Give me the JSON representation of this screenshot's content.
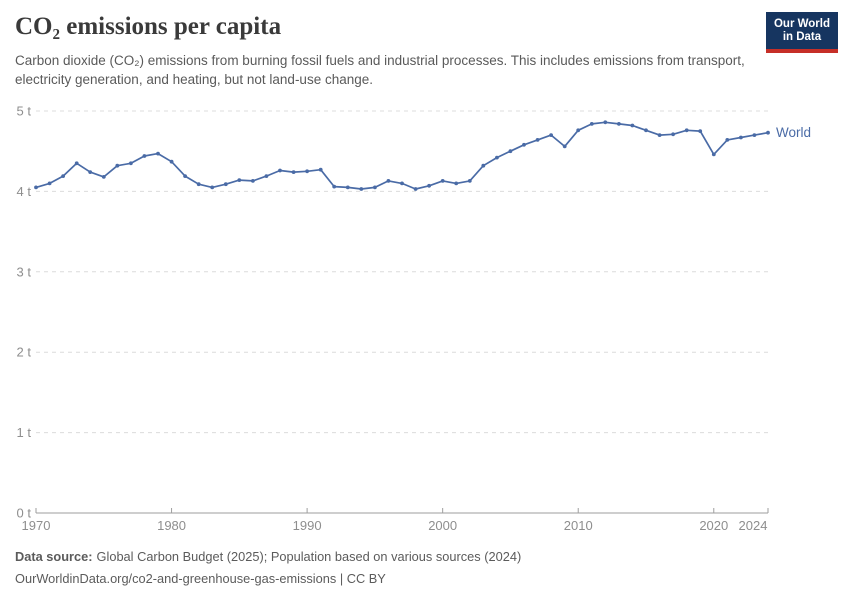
{
  "header": {
    "title": "CO₂ emissions per capita",
    "subtitle": "Carbon dioxide (CO₂) emissions from burning fossil fuels and industrial processes. This includes emissions from transport, electricity generation, and heating, but not land-use change.",
    "logo": {
      "line1": "Our World",
      "line2": "in Data",
      "bg_color": "#163560",
      "accent_color": "#c62f28"
    }
  },
  "chart_data": {
    "type": "line",
    "title": "CO₂ emissions per capita",
    "unit": "t",
    "xlim": [
      1970,
      2024
    ],
    "ylim": [
      0,
      5
    ],
    "grid": "horizontal-dashed",
    "legend_position": "end-of-line-label",
    "x_ticks": [
      1970,
      1980,
      1990,
      2000,
      2010,
      2020,
      2024
    ],
    "y_ticks": [
      0,
      1,
      2,
      3,
      4,
      5
    ],
    "y_tick_suffix": " t",
    "end_label": "World",
    "series": [
      {
        "name": "World",
        "color": "#4a6ba6",
        "x": [
          1970,
          1971,
          1972,
          1973,
          1974,
          1975,
          1976,
          1977,
          1978,
          1979,
          1980,
          1981,
          1982,
          1983,
          1984,
          1985,
          1986,
          1987,
          1988,
          1989,
          1990,
          1991,
          1992,
          1993,
          1994,
          1995,
          1996,
          1997,
          1998,
          1999,
          2000,
          2001,
          2002,
          2003,
          2004,
          2005,
          2006,
          2007,
          2008,
          2009,
          2010,
          2011,
          2012,
          2013,
          2014,
          2015,
          2016,
          2017,
          2018,
          2019,
          2020,
          2021,
          2022,
          2023,
          2024
        ],
        "values": [
          4.05,
          4.1,
          4.19,
          4.35,
          4.24,
          4.18,
          4.32,
          4.35,
          4.44,
          4.47,
          4.37,
          4.19,
          4.09,
          4.05,
          4.09,
          4.14,
          4.13,
          4.19,
          4.26,
          4.24,
          4.25,
          4.27,
          4.06,
          4.05,
          4.03,
          4.05,
          4.13,
          4.1,
          4.03,
          4.07,
          4.13,
          4.1,
          4.13,
          4.32,
          4.42,
          4.5,
          4.58,
          4.64,
          4.7,
          4.56,
          4.76,
          4.84,
          4.86,
          4.84,
          4.82,
          4.76,
          4.7,
          4.71,
          4.76,
          4.75,
          4.46,
          4.64,
          4.67,
          4.7,
          4.73
        ]
      }
    ],
    "axis_label_color": "#8e8e8e",
    "gridline_color": "#dcdcdc",
    "baseline_color": "#9e9e9e"
  },
  "footer": {
    "source_label": "Data source:",
    "source_text": "Global Carbon Budget (2025); Population based on various sources (2024)",
    "url_line": "OurWorldinData.org/co2-and-greenhouse-gas-emissions | CC BY"
  }
}
